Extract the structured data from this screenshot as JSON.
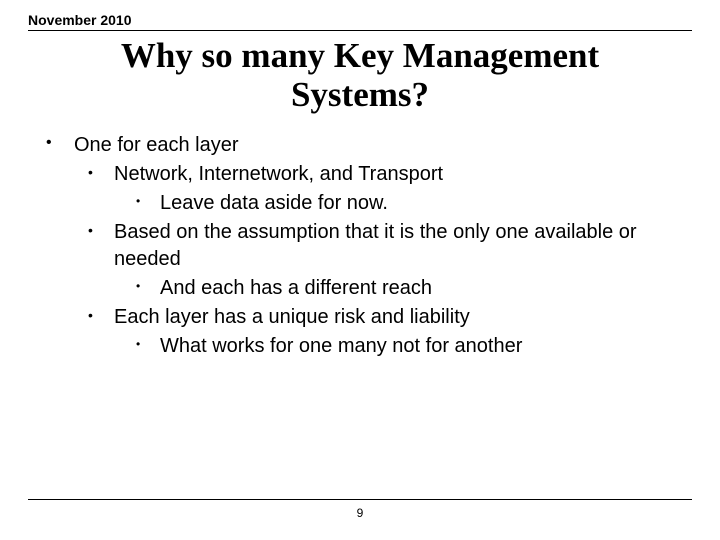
{
  "header": {
    "date": "November 2010"
  },
  "title": "Why so many Key Management Systems?",
  "bullets": {
    "l0": "One for each layer",
    "l1a": "Network, Internetwork, and Transport",
    "l2a": "Leave data aside for now.",
    "l1b": "Based on the assumption that it is the only one available or needed",
    "l2b": "And each has a different reach",
    "l1c": "Each layer has a unique risk and liability",
    "l2c": "What works for one many not for another"
  },
  "footer": {
    "page": "9"
  },
  "style": {
    "background_color": "#ffffff",
    "text_color": "#000000",
    "rule_color": "#000000",
    "title_font": "Times New Roman",
    "body_font": "Arial",
    "title_fontsize_pt": 32,
    "body_fontsize_pt": 20,
    "header_fontsize_pt": 14,
    "footer_fontsize_pt": 12
  }
}
